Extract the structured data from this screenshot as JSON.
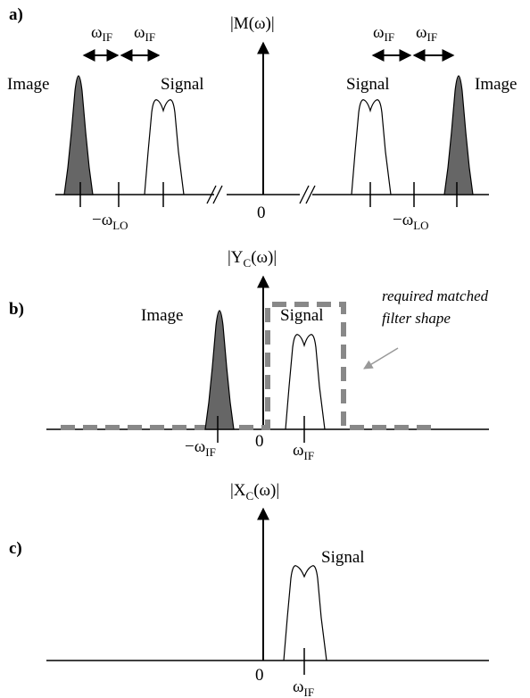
{
  "panel_a": {
    "label": "a)",
    "axis_label_main": "|M(",
    "axis_label_omega": "ω",
    "axis_label_close": ")|",
    "omega": "ω",
    "if_sub": "IF",
    "lo_sub": "LO",
    "minus": "−",
    "image_left": "Image",
    "signal_left": "Signal",
    "signal_right": "Signal",
    "image_right": "Image",
    "zero": "0"
  },
  "panel_b": {
    "label": "b)",
    "axis_label_main": "|Y",
    "axis_label_sub": "C",
    "axis_label_rest": "(ω)|",
    "image": "Image",
    "signal": "Signal",
    "note_line1": "required matched",
    "note_line2": "filter shape",
    "zero": "0",
    "omega": "ω",
    "if_sub": "IF",
    "minus": "−"
  },
  "panel_c": {
    "label": "c)",
    "axis_label_main": "|X",
    "axis_label_sub": "C",
    "axis_label_rest": "(ω)|",
    "signal": "Signal",
    "zero": "0",
    "omega": "ω",
    "if_sub": "IF"
  },
  "colors": {
    "line": "#000000",
    "image_fill": "#666666",
    "filter_dash": "#888888",
    "arrow_gray": "#999999"
  }
}
